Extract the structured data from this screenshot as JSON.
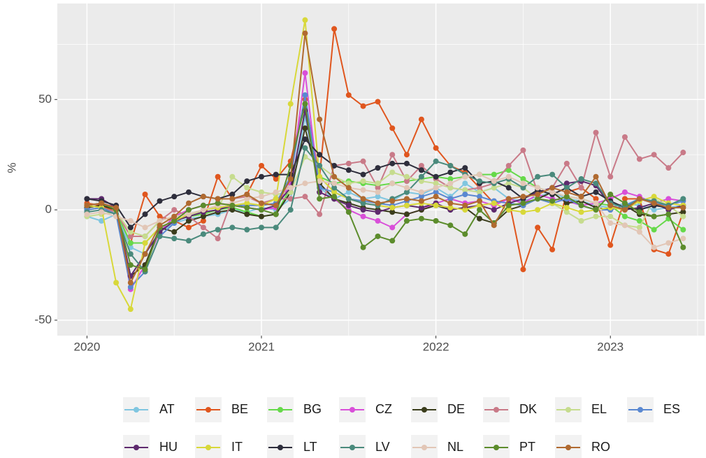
{
  "chart_data": {
    "type": "line",
    "y_label": "%",
    "x": [
      2020,
      2020.083,
      2020.167,
      2020.25,
      2020.333,
      2020.417,
      2020.5,
      2020.583,
      2020.667,
      2020.75,
      2020.833,
      2020.917,
      2021,
      2021.083,
      2021.167,
      2021.25,
      2021.333,
      2021.417,
      2021.5,
      2021.583,
      2021.667,
      2021.75,
      2021.833,
      2021.917,
      2022,
      2022.083,
      2022.167,
      2022.25,
      2022.333,
      2022.417,
      2022.5,
      2022.583,
      2022.667,
      2022.75,
      2022.833,
      2022.917,
      2023,
      2023.083,
      2023.167,
      2023.25,
      2023.333,
      2023.417
    ],
    "xlim": [
      2019.83,
      2023.54
    ],
    "xticks": [
      2020,
      2021,
      2022,
      2023
    ],
    "ylim": [
      -57,
      93.5
    ],
    "yticks": [
      -50,
      0,
      50
    ],
    "grid": true,
    "legend": "bottom",
    "series": [
      {
        "name": "AT",
        "color": "#80c6e0",
        "values": [
          -3,
          -5,
          -2,
          -17,
          -20,
          -10,
          -6,
          -4,
          -3,
          -2,
          0,
          -1,
          1,
          0,
          5,
          42,
          10,
          5,
          8,
          5,
          6,
          4,
          8,
          7,
          10,
          6,
          12,
          8,
          10,
          5,
          4,
          6,
          8,
          5,
          4,
          2,
          1,
          3,
          2,
          0,
          1,
          2
        ]
      },
      {
        "name": "BE",
        "color": "#e0561e",
        "values": [
          3,
          2,
          -1,
          -15,
          7,
          -3,
          -5,
          -8,
          -5,
          15,
          5,
          7,
          20,
          14,
          22,
          50,
          15,
          82,
          52,
          47,
          49,
          37,
          25,
          41,
          28,
          20,
          17,
          10,
          3,
          5,
          -27,
          -8,
          -18,
          8,
          10,
          5,
          -16,
          5,
          5,
          -18,
          -20,
          -1
        ]
      },
      {
        "name": "BG",
        "color": "#66d94a",
        "values": [
          0,
          1,
          -1,
          -15,
          -15,
          -8,
          -5,
          -3,
          -2,
          0,
          1,
          -1,
          -3,
          -2,
          10,
          45,
          15,
          12,
          13,
          12,
          11,
          12,
          13,
          14,
          15,
          14,
          15,
          16,
          16,
          18,
          14,
          10,
          8,
          6,
          5,
          3,
          2,
          -3,
          -5,
          -9,
          -4,
          -9
        ]
      },
      {
        "name": "CZ",
        "color": "#d94fd9",
        "values": [
          2,
          3,
          1,
          -36,
          -25,
          -10,
          -3,
          0,
          2,
          3,
          2,
          1,
          0,
          1,
          12,
          62,
          8,
          5,
          0,
          -3,
          -5,
          -8,
          -2,
          0,
          3,
          5,
          3,
          4,
          2,
          5,
          3,
          7,
          5,
          4,
          2,
          3,
          5,
          8,
          6,
          3,
          5,
          4
        ]
      },
      {
        "name": "DE",
        "color": "#3b3d1c",
        "values": [
          1,
          2,
          0,
          -30,
          -25,
          -8,
          -10,
          -5,
          -3,
          -1,
          0,
          -2,
          -3,
          -2,
          8,
          37,
          12,
          5,
          3,
          1,
          0,
          -1,
          -2,
          0,
          2,
          0,
          1,
          -4,
          -6,
          0,
          2,
          5,
          8,
          3,
          4,
          1,
          0,
          2,
          -2,
          -3,
          -2,
          -1
        ]
      },
      {
        "name": "DK",
        "color": "#c97a88",
        "values": [
          0,
          1,
          -1,
          -12,
          -12,
          -5,
          0,
          -3,
          -8,
          -13,
          5,
          6,
          3,
          5,
          5,
          6,
          -2,
          20,
          21,
          22,
          10,
          25,
          13,
          20,
          14,
          10,
          9,
          10,
          12,
          20,
          27,
          8,
          10,
          21,
          10,
          35,
          15,
          33,
          23,
          25,
          19,
          26
        ]
      },
      {
        "name": "EL",
        "color": "#c6dc8e",
        "values": [
          -3,
          -2,
          -1,
          -10,
          -12,
          -5,
          -3,
          -2,
          -1,
          0,
          15,
          10,
          8,
          7,
          8,
          24,
          20,
          15,
          12,
          13,
          12,
          17,
          15,
          13,
          12,
          10,
          9,
          8,
          10,
          12,
          10,
          5,
          3,
          -1,
          -5,
          -3,
          -3,
          -7,
          -8,
          5,
          2,
          -3
        ]
      },
      {
        "name": "ES",
        "color": "#5a88d1",
        "values": [
          0,
          1,
          -2,
          -35,
          -28,
          -12,
          -6,
          -2,
          0,
          1,
          2,
          2,
          2,
          3,
          15,
          52,
          10,
          8,
          5,
          4,
          3,
          2,
          4,
          6,
          8,
          5,
          7,
          6,
          4,
          3,
          2,
          5,
          3,
          5,
          2,
          0,
          0,
          2,
          5,
          3,
          2,
          4
        ]
      },
      {
        "name": "HU",
        "color": "#5e2a6e",
        "values": [
          5,
          5,
          1,
          -30,
          -20,
          -10,
          -5,
          -3,
          -1,
          0,
          2,
          1,
          0,
          2,
          10,
          45,
          8,
          5,
          2,
          0,
          -1,
          1,
          2,
          1,
          3,
          0,
          1,
          2,
          0,
          3,
          5,
          8,
          10,
          12,
          13,
          11,
          2,
          0,
          1,
          3,
          0,
          2
        ]
      },
      {
        "name": "IT",
        "color": "#d8d83a",
        "values": [
          2,
          1,
          -33,
          -45,
          -15,
          -8,
          -5,
          -2,
          0,
          1,
          2,
          3,
          2,
          5,
          48,
          86,
          15,
          8,
          5,
          3,
          2,
          1,
          2,
          3,
          2,
          1,
          0,
          2,
          3,
          0,
          -1,
          0,
          3,
          1,
          -1,
          0,
          1,
          0,
          4,
          6,
          3,
          2
        ]
      },
      {
        "name": "LT",
        "color": "#2e2e3c",
        "values": [
          5,
          4,
          2,
          -8,
          -2,
          4,
          6,
          8,
          6,
          5,
          7,
          13,
          15,
          16,
          16,
          32,
          25,
          20,
          18,
          16,
          19,
          21,
          21,
          18,
          15,
          17,
          19,
          12,
          13,
          10,
          5,
          9,
          7,
          10,
          6,
          8,
          4,
          1,
          0,
          2,
          1,
          1
        ]
      },
      {
        "name": "LV",
        "color": "#4a8a7c",
        "values": [
          -1,
          0,
          -2,
          -20,
          -28,
          -12,
          -13,
          -14,
          -11,
          -9,
          -8,
          -9,
          -8,
          -8,
          0,
          28,
          20,
          10,
          5,
          3,
          2,
          5,
          8,
          15,
          22,
          20,
          16,
          13,
          12,
          14,
          10,
          15,
          16,
          10,
          14,
          12,
          3,
          1,
          5,
          4,
          2,
          5
        ]
      },
      {
        "name": "NL",
        "color": "#e2c6b6",
        "values": [
          -2,
          -1,
          -3,
          -5,
          -8,
          -5,
          -3,
          -2,
          0,
          2,
          3,
          5,
          6,
          8,
          10,
          12,
          13,
          12,
          10,
          9,
          8,
          12,
          10,
          8,
          10,
          12,
          15,
          16,
          13,
          15,
          12,
          10,
          8,
          6,
          5,
          3,
          -6,
          -7,
          -10,
          -17,
          -15,
          -13
        ]
      },
      {
        "name": "PT",
        "color": "#5c8c2c",
        "values": [
          2,
          3,
          0,
          -25,
          -27,
          -8,
          -5,
          0,
          2,
          3,
          2,
          1,
          0,
          -2,
          20,
          48,
          5,
          6,
          -1,
          -17,
          -12,
          -14,
          -5,
          -4,
          -5,
          -7,
          -11,
          0,
          -6,
          2,
          3,
          5,
          4,
          6,
          2,
          0,
          7,
          3,
          -1,
          -3,
          -2,
          -17
        ]
      },
      {
        "name": "RO",
        "color": "#b06a30",
        "values": [
          2,
          3,
          1,
          -33,
          -20,
          -7,
          -3,
          3,
          6,
          5,
          5,
          7,
          3,
          2,
          14,
          80,
          41,
          15,
          10,
          5,
          3,
          4,
          5,
          4,
          6,
          3,
          2,
          4,
          -7,
          5,
          6,
          7,
          10,
          8,
          6,
          15,
          2,
          0,
          5,
          3,
          1,
          1
        ]
      }
    ]
  }
}
